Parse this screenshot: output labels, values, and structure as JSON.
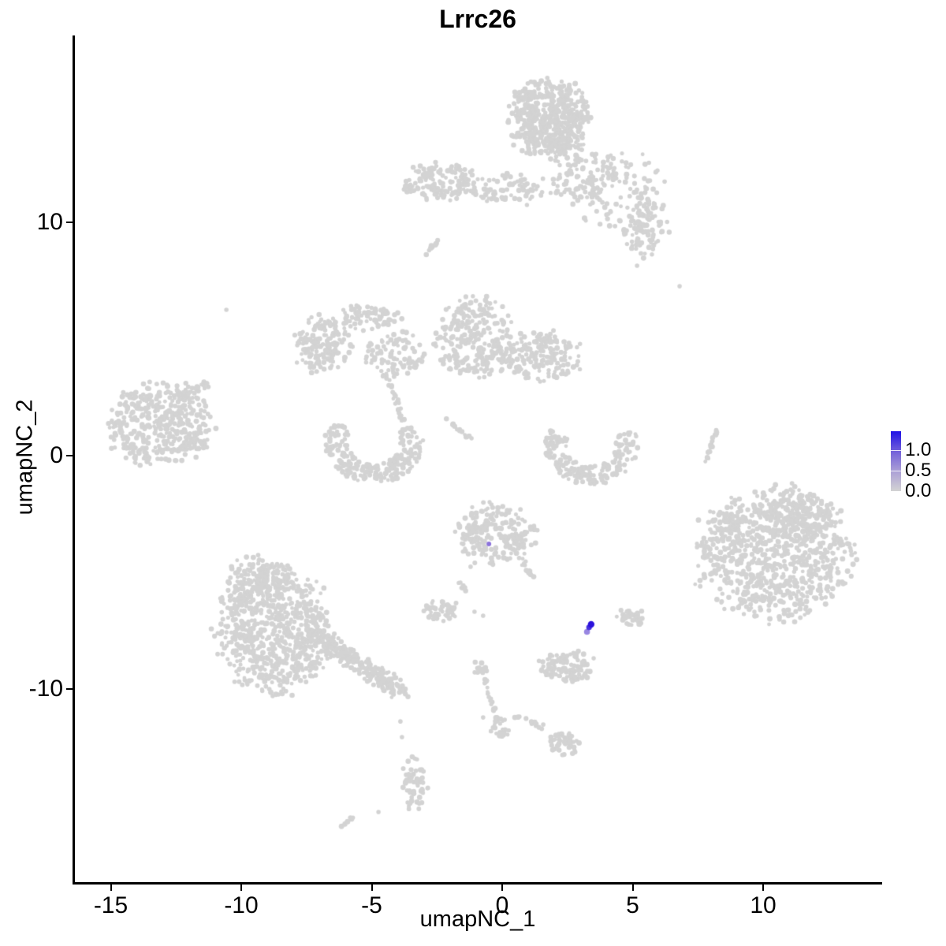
{
  "title": "Lrrc26",
  "axes": {
    "x": {
      "label": "umapNC_1",
      "ticks": [
        "-15",
        "-10",
        "-5",
        "0",
        "5",
        "10"
      ]
    },
    "y": {
      "label": "umapNC_2",
      "ticks": [
        "-10",
        "0",
        "10"
      ]
    }
  },
  "legend": {
    "ticks": [
      {
        "label": "1.0",
        "frac": 0.684
      },
      {
        "label": "0.5",
        "frac": 0.342
      },
      {
        "label": "0.0",
        "frac": 0.0
      }
    ],
    "gradient_top_to_bottom": [
      "#2012e6",
      "#7260da",
      "#ab9fd6",
      "#d3d3d3"
    ]
  },
  "chart_data": {
    "type": "scatter",
    "title": "Lrrc26",
    "xlabel": "umapNC_1",
    "ylabel": "umapNC_2",
    "xlim": [
      -16.4,
      14.4
    ],
    "ylim": [
      -18.2,
      18.0
    ],
    "xticks": [
      -15,
      -10,
      -5,
      0,
      5,
      10
    ],
    "yticks": [
      -10,
      0,
      10
    ],
    "grid": false,
    "legend_position": "right",
    "color_scale": {
      "low_value": 0.0,
      "high_value": 1.46,
      "low_color": "#d3d3d3",
      "high_color": "#2012e6",
      "tick_values": [
        0.0,
        0.5,
        1.0
      ]
    },
    "expressing_cells": [
      {
        "x": -0.51,
        "y": -3.78,
        "value": 0.55,
        "color": "#8b72db",
        "radius": 3.0
      },
      {
        "x": 3.25,
        "y": -7.55,
        "value": 0.6,
        "color": "#9886e1",
        "radius": 3.8
      },
      {
        "x": 3.33,
        "y": -7.36,
        "value": 1.2,
        "color": "#4630de",
        "radius": 3.6
      },
      {
        "x": 3.41,
        "y": -7.23,
        "value": 1.4,
        "color": "#2b11dc",
        "radius": 4.2
      }
    ],
    "background_cells": {
      "color": "#d3d3d3",
      "point_radius_px": 2.8,
      "singles": [
        [
          -10.57,
          6.25
        ],
        [
          5.17,
          8.14
        ],
        [
          6.8,
          7.26
        ],
        [
          -1.21,
          -4.76
        ],
        [
          -1.06,
          -6.69
        ],
        [
          -0.73,
          -6.86
        ],
        [
          -4.74,
          -15.27
        ],
        [
          -3.9,
          -11.39
        ],
        [
          -3.84,
          -12.06
        ],
        [
          -0.73,
          -11.22
        ]
      ],
      "clusters": [
        {
          "shape": "blob",
          "cx": 1.81,
          "cy": 14.46,
          "rx": 1.35,
          "ry": 1.5,
          "n": 560
        },
        {
          "shape": "blob",
          "cx": 3.11,
          "cy": 11.93,
          "rx": 1.0,
          "ry": 1.05,
          "n": 90
        },
        {
          "shape": "blob",
          "cx": 4.47,
          "cy": 11.25,
          "rx": 1.55,
          "ry": 1.5,
          "n": 110
        },
        {
          "shape": "blob",
          "cx": 5.53,
          "cy": 9.73,
          "rx": 0.75,
          "ry": 1.05,
          "n": 90
        },
        {
          "shape": "blob",
          "cx": -2.39,
          "cy": 11.76,
          "rx": 1.25,
          "ry": 0.72,
          "n": 150
        },
        {
          "shape": "blob",
          "cx": 0.39,
          "cy": 11.42,
          "rx": 1.55,
          "ry": 0.58,
          "n": 85
        },
        {
          "shape": "line",
          "x1": -3.02,
          "y1": 8.62,
          "x2": -2.45,
          "y2": 9.19,
          "jitter": 0.07,
          "n": 12
        },
        {
          "shape": "blob",
          "cx": -5.29,
          "cy": 5.95,
          "rx": 1.2,
          "ry": 0.5,
          "n": 75
        },
        {
          "shape": "blob",
          "cx": -6.86,
          "cy": 4.76,
          "rx": 0.95,
          "ry": 1.1,
          "n": 160
        },
        {
          "shape": "blob",
          "cx": -4.14,
          "cy": 4.26,
          "rx": 0.95,
          "ry": 0.9,
          "n": 95
        },
        {
          "shape": "line",
          "x1": -4.5,
          "y1": 3.65,
          "x2": -3.78,
          "y2": 1.45,
          "jitter": 0.09,
          "n": 22
        },
        {
          "shape": "blob",
          "cx": -1.06,
          "cy": 5.0,
          "rx": 1.35,
          "ry": 1.55,
          "n": 280
        },
        {
          "shape": "blob",
          "cx": 1.54,
          "cy": 4.26,
          "rx": 1.3,
          "ry": 0.95,
          "n": 170
        },
        {
          "shape": "line",
          "x1": -2.45,
          "y1": 1.76,
          "x2": -1.12,
          "y2": 0.68,
          "jitter": 0.06,
          "n": 15
        },
        {
          "shape": "blob",
          "cx": -13.14,
          "cy": 1.39,
          "rx": 1.75,
          "ry": 1.6,
          "n": 430
        },
        {
          "shape": "line",
          "x1": -12.3,
          "y1": 2.47,
          "x2": -11.3,
          "y2": 3.11,
          "jitter": 0.14,
          "n": 28
        },
        {
          "shape": "arc",
          "cx": -4.92,
          "cy": 0.61,
          "r": 1.38,
          "a0": 150,
          "a1": 385,
          "thick": 0.42,
          "n": 230
        },
        {
          "shape": "arc",
          "cx": 3.41,
          "cy": 0.44,
          "r": 1.3,
          "a0": 155,
          "a1": 385,
          "thick": 0.4,
          "n": 200
        },
        {
          "shape": "line",
          "x1": 8.25,
          "y1": 1.22,
          "x2": 7.82,
          "y2": -0.27,
          "jitter": 0.05,
          "n": 22
        },
        {
          "shape": "blob",
          "cx": 10.45,
          "cy": -4.22,
          "rx": 2.65,
          "ry": 2.5,
          "n": 820
        },
        {
          "shape": "blob",
          "cx": 11.42,
          "cy": -2.6,
          "rx": 1.35,
          "ry": 0.95,
          "n": 160
        },
        {
          "shape": "blob",
          "cx": 8.85,
          "cy": -3.61,
          "rx": 1.0,
          "ry": 1.0,
          "n": 70
        },
        {
          "shape": "blob",
          "cx": -0.27,
          "cy": -3.34,
          "rx": 1.35,
          "ry": 1.15,
          "n": 225
        },
        {
          "shape": "line",
          "x1": 0.54,
          "y1": -4.12,
          "x2": 1.24,
          "y2": -5.3,
          "jitter": 0.1,
          "n": 16
        },
        {
          "shape": "blob",
          "cx": -2.39,
          "cy": -6.62,
          "rx": 0.62,
          "ry": 0.42,
          "n": 55
        },
        {
          "shape": "line",
          "x1": -1.78,
          "y1": -5.24,
          "x2": -1.42,
          "y2": -5.78,
          "jitter": 0.05,
          "n": 8
        },
        {
          "shape": "blob",
          "cx": 4.98,
          "cy": -6.96,
          "rx": 0.5,
          "ry": 0.4,
          "n": 42
        },
        {
          "shape": "blob",
          "cx": -8.73,
          "cy": -7.43,
          "rx": 1.95,
          "ry": 2.45,
          "n": 760
        },
        {
          "shape": "blob",
          "cx": -9.27,
          "cy": -5.14,
          "rx": 1.05,
          "ry": 0.8,
          "n": 90
        },
        {
          "shape": "line",
          "x1": -6.92,
          "y1": -7.91,
          "x2": -3.78,
          "y2": -10.14,
          "jitter": 0.33,
          "n": 230
        },
        {
          "shape": "blob",
          "cx": 2.48,
          "cy": -9.02,
          "rx": 0.95,
          "ry": 0.58,
          "n": 110
        },
        {
          "shape": "blob",
          "cx": -0.88,
          "cy": -9.12,
          "rx": 0.3,
          "ry": 0.28,
          "n": 14
        },
        {
          "shape": "line",
          "x1": -0.66,
          "y1": -9.59,
          "x2": -0.09,
          "y2": -11.62,
          "jitter": 0.07,
          "n": 26
        },
        {
          "shape": "blob",
          "cx": -0.06,
          "cy": -11.72,
          "rx": 0.33,
          "ry": 0.4,
          "n": 22
        },
        {
          "shape": "line",
          "x1": 0.33,
          "y1": -11.05,
          "x2": 1.66,
          "y2": -11.72,
          "jitter": 0.14,
          "n": 13
        },
        {
          "shape": "blob",
          "cx": 2.27,
          "cy": -12.33,
          "rx": 0.58,
          "ry": 0.45,
          "n": 46
        },
        {
          "shape": "blob",
          "cx": -3.35,
          "cy": -14.02,
          "rx": 0.4,
          "ry": 1.0,
          "n": 60
        },
        {
          "shape": "line",
          "x1": -6.16,
          "y1": -15.91,
          "x2": -5.74,
          "y2": -15.51,
          "jitter": 0.05,
          "n": 9
        }
      ]
    }
  }
}
